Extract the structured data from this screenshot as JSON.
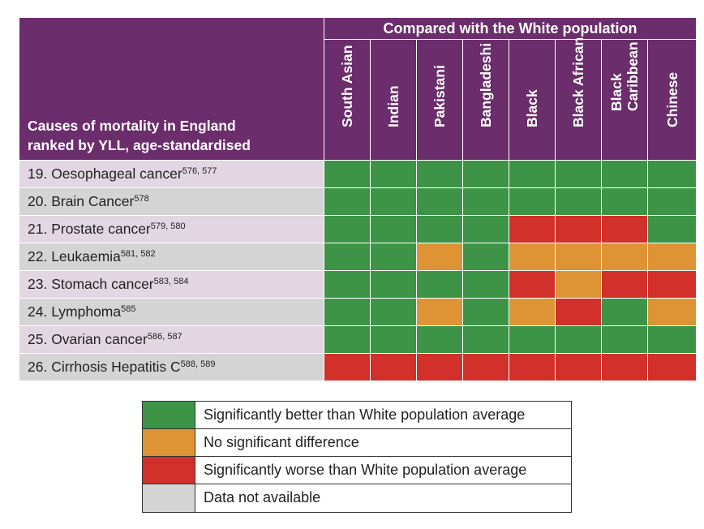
{
  "colors": {
    "header": "#6b2d6b",
    "better": "#3d9447",
    "none": "#de9435",
    "worse": "#d2302a",
    "na": "#d4d4d4",
    "row_odd": "#e2d6e3",
    "row_even": "#d4d4d4"
  },
  "header": {
    "row_title_lines": [
      "Causes of mortality in England",
      "ranked by YLL, age-standardised"
    ],
    "group_title": "Compared with the White population"
  },
  "chart_data": {
    "type": "table",
    "columns": [
      {
        "lines": [
          "South Asian"
        ]
      },
      {
        "lines": [
          "Indian"
        ]
      },
      {
        "lines": [
          "Pakistani"
        ]
      },
      {
        "lines": [
          "Bangladeshi"
        ]
      },
      {
        "lines": [
          "Black"
        ]
      },
      {
        "lines": [
          "Black African"
        ]
      },
      {
        "lines": [
          "Black",
          "Caribbean"
        ]
      },
      {
        "lines": [
          "Chinese"
        ]
      }
    ],
    "rows": [
      {
        "label": "19. Oesophageal cancer",
        "refs": "576, 577",
        "values": [
          "better",
          "better",
          "better",
          "better",
          "better",
          "better",
          "better",
          "better"
        ]
      },
      {
        "label": "20. Brain Cancer",
        "refs": "578",
        "values": [
          "better",
          "better",
          "better",
          "better",
          "better",
          "better",
          "better",
          "better"
        ]
      },
      {
        "label": "21. Prostate cancer",
        "refs": "579, 580",
        "values": [
          "better",
          "better",
          "better",
          "better",
          "worse",
          "worse",
          "worse",
          "better"
        ]
      },
      {
        "label": "22. Leukaemia",
        "refs": "581, 582",
        "values": [
          "better",
          "better",
          "none",
          "better",
          "none",
          "none",
          "none",
          "none"
        ]
      },
      {
        "label": "23. Stomach cancer",
        "refs": "583, 584",
        "values": [
          "better",
          "better",
          "better",
          "better",
          "worse",
          "none",
          "worse",
          "worse"
        ]
      },
      {
        "label": "24. Lymphoma",
        "refs": "585",
        "values": [
          "better",
          "better",
          "none",
          "better",
          "none",
          "worse",
          "better",
          "none"
        ]
      },
      {
        "label": "25. Ovarian cancer",
        "refs": "586, 587",
        "values": [
          "better",
          "better",
          "better",
          "better",
          "better",
          "better",
          "better",
          "better"
        ]
      },
      {
        "label": "26. Cirrhosis Hepatitis C",
        "refs": "588, 589",
        "values": [
          "worse",
          "worse",
          "worse",
          "worse",
          "worse",
          "worse",
          "worse",
          "worse"
        ]
      }
    ],
    "legend": [
      {
        "key": "better",
        "label": "Significantly better than White population average"
      },
      {
        "key": "none",
        "label": "No significant difference"
      },
      {
        "key": "worse",
        "label": "Significantly worse than White population average"
      },
      {
        "key": "na",
        "label": "Data not available"
      }
    ]
  }
}
